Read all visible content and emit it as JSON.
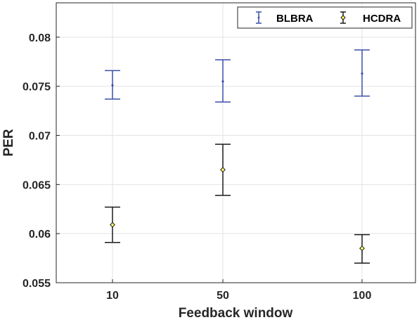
{
  "chart_data": {
    "type": "errorbar",
    "xlabel": "Feedback window",
    "ylabel": "PER",
    "categories": [
      "10",
      "50",
      "100"
    ],
    "ylim": [
      0.055,
      0.0835
    ],
    "yticks": [
      "0.055",
      "0.06",
      "0.065",
      "0.07",
      "0.075",
      "0.08"
    ],
    "grid": true,
    "legend_position": "top-right",
    "series": [
      {
        "name": "BLBRA",
        "color": "#3a4fa8",
        "marker": "point",
        "values": [
          0.0751,
          0.0755,
          0.0763
        ],
        "lower": [
          0.0737,
          0.0734,
          0.074
        ],
        "upper": [
          0.0766,
          0.0777,
          0.0787
        ]
      },
      {
        "name": "HCDRA",
        "color": "#1a1a1a",
        "marker_fill": "#ffff66",
        "marker": "diamond",
        "values": [
          0.0609,
          0.0665,
          0.0585
        ],
        "lower": [
          0.0591,
          0.0639,
          0.057
        ],
        "upper": [
          0.0627,
          0.0691,
          0.0599
        ]
      }
    ]
  }
}
